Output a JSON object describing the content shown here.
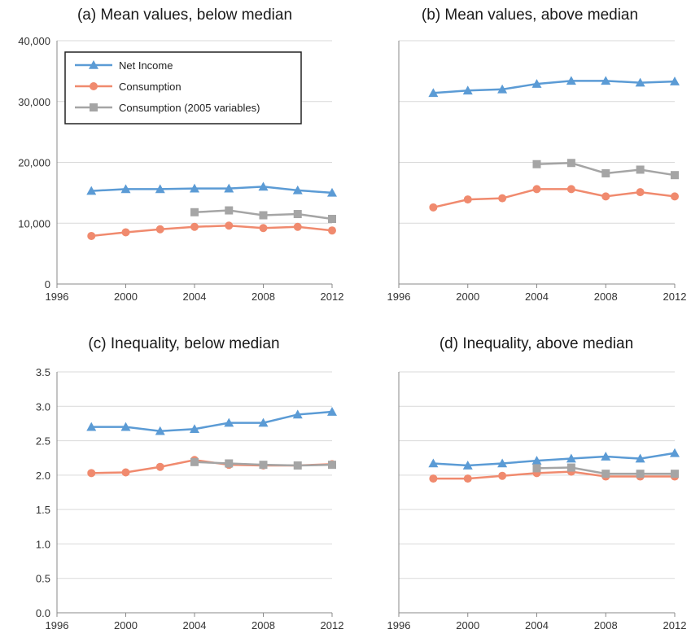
{
  "colors": {
    "net_income": "#5b9bd5",
    "consumption": "#f08a6e",
    "consumption_2005": "#a5a5a5",
    "gridline": "#d9d9d9",
    "axis": "#888888"
  },
  "legend": {
    "items": [
      {
        "label": "Net Income",
        "series_key": "net_income",
        "marker": "triangle"
      },
      {
        "label": "Consumption",
        "series_key": "consumption",
        "marker": "circle"
      },
      {
        "label": "Consumption (2005 variables)",
        "series_key": "consumption_2005",
        "marker": "square"
      }
    ]
  },
  "chart_data": [
    {
      "type": "line",
      "title": "(a) Mean values, below median",
      "xlabel": "",
      "ylabel": "",
      "xlim": [
        1996,
        2012
      ],
      "ylim": [
        0,
        40000
      ],
      "x_ticks": [
        "1996",
        "2000",
        "2004",
        "2008",
        "2012"
      ],
      "y_ticks": [
        "0",
        "10,000",
        "20,000",
        "30,000",
        "40,000"
      ],
      "grid": true,
      "show_y_labels": true,
      "legend_placement": "top-left",
      "series": [
        {
          "name": "Net Income",
          "key": "net_income",
          "marker": "triangle",
          "x": [
            1998,
            2000,
            2002,
            2004,
            2006,
            2008,
            2010,
            2012
          ],
          "y": [
            15300,
            15600,
            15600,
            15700,
            15700,
            16000,
            15400,
            15000
          ]
        },
        {
          "name": "Consumption",
          "key": "consumption",
          "marker": "circle",
          "x": [
            1998,
            2000,
            2002,
            2004,
            2006,
            2008,
            2010,
            2012
          ],
          "y": [
            7900,
            8500,
            9000,
            9400,
            9600,
            9200,
            9400,
            8800
          ]
        },
        {
          "name": "Consumption (2005 variables)",
          "key": "consumption_2005",
          "marker": "square",
          "x": [
            2004,
            2006,
            2008,
            2010,
            2012
          ],
          "y": [
            11800,
            12100,
            11300,
            11500,
            10700
          ]
        }
      ]
    },
    {
      "type": "line",
      "title": "(b) Mean values, above median",
      "xlabel": "",
      "ylabel": "",
      "xlim": [
        1996,
        2012
      ],
      "ylim": [
        0,
        40000
      ],
      "x_ticks": [
        "1996",
        "2000",
        "2004",
        "2008",
        "2012"
      ],
      "y_ticks": [
        "0",
        "10,000",
        "20,000",
        "30,000",
        "40,000"
      ],
      "grid": true,
      "show_y_labels": false,
      "series": [
        {
          "name": "Net Income",
          "key": "net_income",
          "marker": "triangle",
          "x": [
            1998,
            2000,
            2002,
            2004,
            2006,
            2008,
            2010,
            2012
          ],
          "y": [
            31400,
            31800,
            32000,
            32900,
            33400,
            33400,
            33100,
            33300
          ]
        },
        {
          "name": "Consumption",
          "key": "consumption",
          "marker": "circle",
          "x": [
            1998,
            2000,
            2002,
            2004,
            2006,
            2008,
            2010,
            2012
          ],
          "y": [
            12600,
            13900,
            14100,
            15600,
            15600,
            14400,
            15100,
            14400
          ]
        },
        {
          "name": "Consumption (2005 variables)",
          "key": "consumption_2005",
          "marker": "square",
          "x": [
            2004,
            2006,
            2008,
            2010,
            2012
          ],
          "y": [
            19700,
            19900,
            18200,
            18800,
            17900
          ]
        }
      ]
    },
    {
      "type": "line",
      "title": "(c) Inequality, below median",
      "xlabel": "",
      "ylabel": "",
      "xlim": [
        1996,
        2012
      ],
      "ylim": [
        0,
        3.5
      ],
      "x_ticks": [
        "1996",
        "2000",
        "2004",
        "2008",
        "2012"
      ],
      "y_ticks": [
        "0.0",
        "0.5",
        "1.0",
        "1.5",
        "2.0",
        "2.5",
        "3.0",
        "3.5"
      ],
      "grid": true,
      "show_y_labels": true,
      "series": [
        {
          "name": "Net Income",
          "key": "net_income",
          "marker": "triangle",
          "x": [
            1998,
            2000,
            2002,
            2004,
            2006,
            2008,
            2010,
            2012
          ],
          "y": [
            2.7,
            2.7,
            2.64,
            2.67,
            2.76,
            2.76,
            2.88,
            2.92
          ]
        },
        {
          "name": "Consumption",
          "key": "consumption",
          "marker": "circle",
          "x": [
            1998,
            2000,
            2002,
            2004,
            2006,
            2008,
            2010,
            2012
          ],
          "y": [
            2.03,
            2.04,
            2.12,
            2.22,
            2.15,
            2.14,
            2.14,
            2.16
          ]
        },
        {
          "name": "Consumption (2005 variables)",
          "key": "consumption_2005",
          "marker": "square",
          "x": [
            2004,
            2006,
            2008,
            2010,
            2012
          ],
          "y": [
            2.19,
            2.17,
            2.15,
            2.14,
            2.15
          ]
        }
      ]
    },
    {
      "type": "line",
      "title": "(d) Inequality, above median",
      "xlabel": "",
      "ylabel": "",
      "xlim": [
        1996,
        2012
      ],
      "ylim": [
        0,
        3.5
      ],
      "x_ticks": [
        "1996",
        "2000",
        "2004",
        "2008",
        "2012"
      ],
      "y_ticks": [
        "0.0",
        "0.5",
        "1.0",
        "1.5",
        "2.0",
        "2.5",
        "3.0",
        "3.5"
      ],
      "grid": true,
      "show_y_labels": false,
      "series": [
        {
          "name": "Net Income",
          "key": "net_income",
          "marker": "triangle",
          "x": [
            1998,
            2000,
            2002,
            2004,
            2006,
            2008,
            2010,
            2012
          ],
          "y": [
            2.17,
            2.14,
            2.17,
            2.21,
            2.24,
            2.27,
            2.24,
            2.32
          ]
        },
        {
          "name": "Consumption",
          "key": "consumption",
          "marker": "circle",
          "x": [
            1998,
            2000,
            2002,
            2004,
            2006,
            2008,
            2010,
            2012
          ],
          "y": [
            1.95,
            1.95,
            1.99,
            2.03,
            2.05,
            1.98,
            1.98,
            1.98
          ]
        },
        {
          "name": "Consumption (2005 variables)",
          "key": "consumption_2005",
          "marker": "square",
          "x": [
            2004,
            2006,
            2008,
            2010,
            2012
          ],
          "y": [
            2.1,
            2.11,
            2.02,
            2.02,
            2.02
          ]
        }
      ]
    }
  ]
}
